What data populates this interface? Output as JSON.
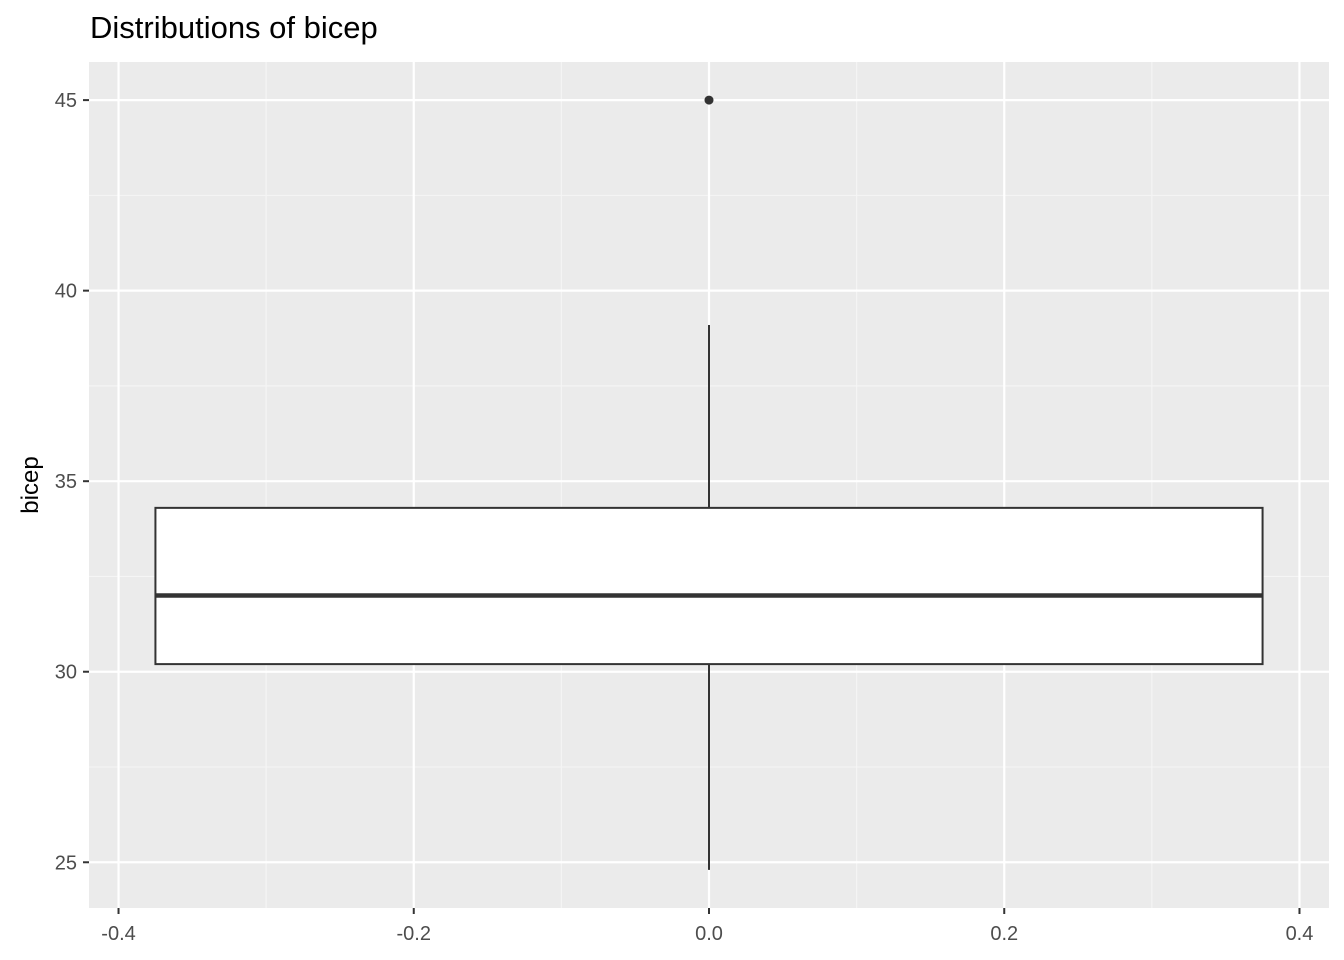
{
  "chart_data": {
    "type": "box",
    "title": "Distributions of bicep",
    "xlabel": "",
    "ylabel": "bicep",
    "xlim": [
      -0.42,
      0.42
    ],
    "ylim": [
      23.8,
      46.0
    ],
    "x_ticks": [
      -0.4,
      -0.2,
      0.0,
      0.2,
      0.4
    ],
    "x_tick_labels": [
      "-0.4",
      "-0.2",
      "0.0",
      "0.2",
      "0.4"
    ],
    "y_ticks": [
      25,
      30,
      35,
      40,
      45
    ],
    "y_tick_labels": [
      "25",
      "30",
      "35",
      "40",
      "45"
    ],
    "grid": true,
    "legend": "none",
    "box": {
      "x": 0.0,
      "box_left": -0.375,
      "box_right": 0.375,
      "min": 24.8,
      "q1": 30.2,
      "median": 32.0,
      "q3": 34.3,
      "max": 39.1,
      "outliers": [
        45.0
      ]
    },
    "colors": {
      "panel_background": "#ebebeb",
      "grid_major": "#ffffff",
      "grid_minor": "#f5f5f5",
      "box_fill": "#ffffff",
      "box_line": "#333333",
      "tick_label": "#4d4d4d"
    }
  }
}
